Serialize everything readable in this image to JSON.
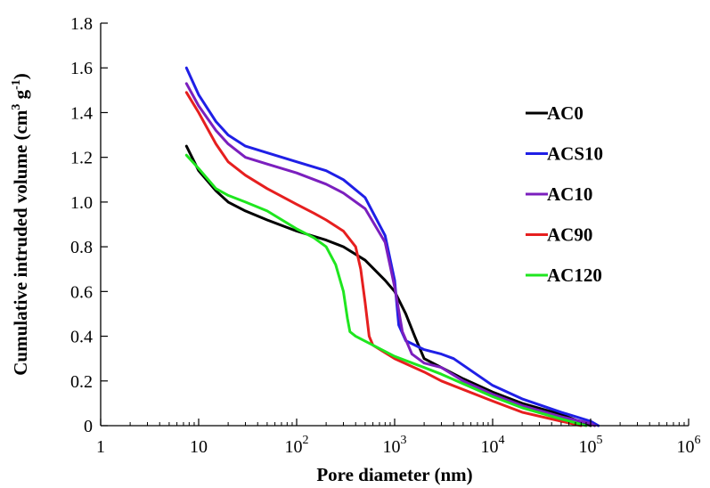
{
  "chart_data": {
    "type": "line",
    "title": "",
    "xlabel": "Pore diameter (nm)",
    "ylabel_parts": [
      "Cumulative intruded volume (cm",
      "3",
      " g",
      "-1",
      ")"
    ],
    "x_scale": "log",
    "xlim": [
      1,
      1000000
    ],
    "ylim": [
      0,
      1.8
    ],
    "x_ticks": [
      {
        "value": 1,
        "base": "1",
        "exp": ""
      },
      {
        "value": 10,
        "base": "10",
        "exp": ""
      },
      {
        "value": 100,
        "base": "10",
        "exp": "2"
      },
      {
        "value": 1000,
        "base": "10",
        "exp": "3"
      },
      {
        "value": 10000,
        "base": "10",
        "exp": "4"
      },
      {
        "value": 100000,
        "base": "10",
        "exp": "5"
      },
      {
        "value": 1000000,
        "base": "10",
        "exp": "6"
      }
    ],
    "y_ticks": [
      {
        "value": 0,
        "label": "0"
      },
      {
        "value": 0.2,
        "label": "0.2"
      },
      {
        "value": 0.4,
        "label": "0.4"
      },
      {
        "value": 0.6,
        "label": "0.6"
      },
      {
        "value": 0.8,
        "label": "0.8"
      },
      {
        "value": 1.0,
        "label": "1.0"
      },
      {
        "value": 1.2,
        "label": "1.2"
      },
      {
        "value": 1.4,
        "label": "1.4"
      },
      {
        "value": 1.6,
        "label": "1.6"
      },
      {
        "value": 1.8,
        "label": "1.8"
      }
    ],
    "grid": false,
    "legend_position": "right",
    "series": [
      {
        "name": "AC0",
        "color": "#000000",
        "points": [
          [
            7.5,
            1.25
          ],
          [
            10,
            1.14
          ],
          [
            15,
            1.05
          ],
          [
            20,
            1.0
          ],
          [
            30,
            0.96
          ],
          [
            50,
            0.92
          ],
          [
            100,
            0.87
          ],
          [
            200,
            0.83
          ],
          [
            300,
            0.8
          ],
          [
            500,
            0.74
          ],
          [
            800,
            0.65
          ],
          [
            1000,
            0.6
          ],
          [
            1300,
            0.5
          ],
          [
            1600,
            0.4
          ],
          [
            2000,
            0.3
          ],
          [
            3000,
            0.26
          ],
          [
            5000,
            0.21
          ],
          [
            10000,
            0.15
          ],
          [
            20000,
            0.1
          ],
          [
            50000,
            0.05
          ],
          [
            100000,
            0.0
          ]
        ]
      },
      {
        "name": "ACS10",
        "color": "#1f1fe6",
        "points": [
          [
            7.5,
            1.6
          ],
          [
            10,
            1.48
          ],
          [
            15,
            1.36
          ],
          [
            20,
            1.3
          ],
          [
            30,
            1.25
          ],
          [
            50,
            1.22
          ],
          [
            100,
            1.18
          ],
          [
            200,
            1.14
          ],
          [
            300,
            1.1
          ],
          [
            500,
            1.02
          ],
          [
            800,
            0.85
          ],
          [
            1000,
            0.65
          ],
          [
            1100,
            0.45
          ],
          [
            1300,
            0.38
          ],
          [
            2000,
            0.34
          ],
          [
            3000,
            0.32
          ],
          [
            4000,
            0.3
          ],
          [
            10000,
            0.18
          ],
          [
            20000,
            0.12
          ],
          [
            50000,
            0.06
          ],
          [
            100000,
            0.02
          ],
          [
            120000,
            0.0
          ]
        ]
      },
      {
        "name": "AC10",
        "color": "#7b1fbe",
        "points": [
          [
            7.5,
            1.53
          ],
          [
            10,
            1.43
          ],
          [
            15,
            1.32
          ],
          [
            20,
            1.26
          ],
          [
            30,
            1.2
          ],
          [
            50,
            1.17
          ],
          [
            100,
            1.13
          ],
          [
            200,
            1.08
          ],
          [
            300,
            1.04
          ],
          [
            500,
            0.97
          ],
          [
            800,
            0.82
          ],
          [
            1000,
            0.62
          ],
          [
            1200,
            0.42
          ],
          [
            1500,
            0.32
          ],
          [
            2000,
            0.28
          ],
          [
            3000,
            0.26
          ],
          [
            5000,
            0.2
          ],
          [
            10000,
            0.14
          ],
          [
            20000,
            0.09
          ],
          [
            50000,
            0.04
          ],
          [
            100000,
            0.01
          ],
          [
            110000,
            0.0
          ]
        ]
      },
      {
        "name": "AC90",
        "color": "#e61f1f",
        "points": [
          [
            7.5,
            1.49
          ],
          [
            10,
            1.4
          ],
          [
            15,
            1.26
          ],
          [
            20,
            1.18
          ],
          [
            30,
            1.12
          ],
          [
            50,
            1.06
          ],
          [
            100,
            0.99
          ],
          [
            150,
            0.95
          ],
          [
            200,
            0.92
          ],
          [
            300,
            0.87
          ],
          [
            400,
            0.8
          ],
          [
            450,
            0.7
          ],
          [
            500,
            0.55
          ],
          [
            550,
            0.4
          ],
          [
            600,
            0.36
          ],
          [
            1000,
            0.3
          ],
          [
            2000,
            0.24
          ],
          [
            3000,
            0.2
          ],
          [
            10000,
            0.11
          ],
          [
            20000,
            0.06
          ],
          [
            50000,
            0.02
          ],
          [
            80000,
            0.0
          ]
        ]
      },
      {
        "name": "AC120",
        "color": "#1fe61f",
        "points": [
          [
            7.5,
            1.21
          ],
          [
            10,
            1.15
          ],
          [
            15,
            1.06
          ],
          [
            20,
            1.03
          ],
          [
            30,
            1.0
          ],
          [
            50,
            0.96
          ],
          [
            100,
            0.88
          ],
          [
            150,
            0.84
          ],
          [
            200,
            0.8
          ],
          [
            250,
            0.72
          ],
          [
            300,
            0.6
          ],
          [
            330,
            0.48
          ],
          [
            350,
            0.42
          ],
          [
            400,
            0.4
          ],
          [
            600,
            0.36
          ],
          [
            1000,
            0.31
          ],
          [
            2000,
            0.26
          ],
          [
            3000,
            0.23
          ],
          [
            10000,
            0.13
          ],
          [
            20000,
            0.08
          ],
          [
            50000,
            0.03
          ],
          [
            90000,
            0.0
          ]
        ]
      }
    ]
  }
}
